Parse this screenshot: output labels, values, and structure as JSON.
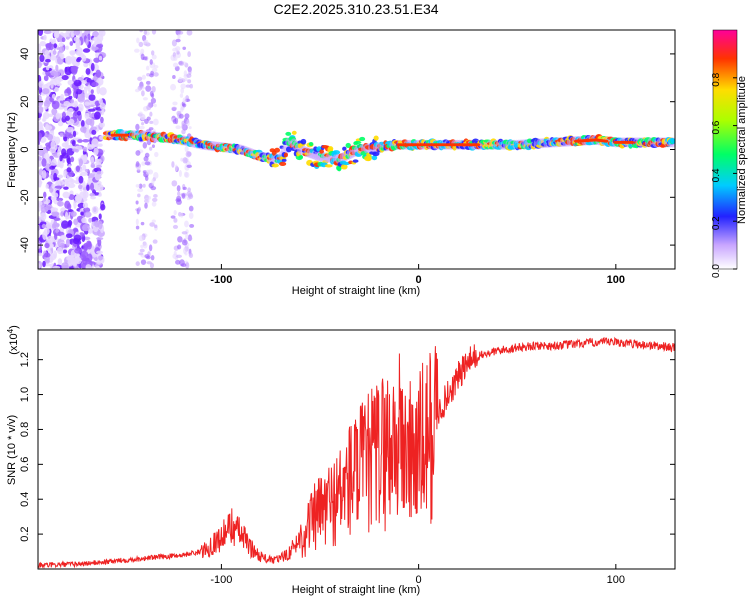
{
  "chart_data": [
    {
      "type": "heatmap",
      "title": "C2E2.2025.310.23.51.E34",
      "xlabel": "Height of straight line (km)",
      "ylabel": "Frequency (Hz)",
      "xlim": [
        -193,
        130
      ],
      "ylim": [
        -50,
        50
      ],
      "xticks": [
        -100,
        0,
        100
      ],
      "yticks": [
        -40,
        -20,
        0,
        20,
        40
      ],
      "colorbar": {
        "label": "Normalized spectral amplitude",
        "range": [
          0.0,
          1.0
        ],
        "ticks": [
          0.0,
          0.2,
          0.4,
          0.6,
          0.8
        ]
      },
      "ridge": {
        "x": [
          -158,
          -150,
          -140,
          -130,
          -120,
          -110,
          -100,
          -90,
          -80,
          -70,
          -65,
          -60,
          -50,
          -40,
          -30,
          -20,
          -10,
          0,
          10,
          20,
          30,
          50,
          70,
          90,
          100,
          110,
          130
        ],
        "freq": [
          6,
          6,
          6,
          5,
          4,
          2,
          1,
          0,
          -3,
          -4,
          4,
          0,
          -3,
          -4,
          0,
          1,
          2,
          2,
          2,
          2,
          2,
          2,
          3,
          4,
          3,
          3,
          3
        ]
      }
    },
    {
      "type": "line",
      "title": "",
      "xlabel": "Height of straight line (km)",
      "ylabel": "SNR (10 * v/v)",
      "yscale_label": "(x10",
      "yscale_exponent": "4",
      "xlim": [
        -193,
        130
      ],
      "ylim": [
        0,
        1.37
      ],
      "xticks": [
        -100,
        0,
        100
      ],
      "yticks": [
        0.2,
        0.4,
        0.6,
        0.8,
        1.0,
        1.2
      ],
      "series": [
        {
          "name": "SNR",
          "color": "#ee2222",
          "x": [
            -193,
            -170,
            -150,
            -140,
            -130,
            -120,
            -110,
            -100,
            -95,
            -90,
            -85,
            -80,
            -75,
            -70,
            -65,
            -60,
            -55,
            -50,
            -45,
            -40,
            -35,
            -30,
            -25,
            -20,
            -15,
            -10,
            -5,
            0,
            5,
            10,
            15,
            20,
            25,
            30,
            40,
            50,
            60,
            70,
            80,
            90,
            100,
            110,
            120,
            130
          ],
          "y": [
            0.02,
            0.03,
            0.05,
            0.06,
            0.07,
            0.08,
            0.1,
            0.18,
            0.25,
            0.2,
            0.12,
            0.07,
            0.05,
            0.06,
            0.1,
            0.18,
            0.28,
            0.35,
            0.4,
            0.45,
            0.55,
            0.6,
            0.65,
            0.72,
            0.75,
            0.8,
            0.7,
            0.72,
            0.8,
            0.9,
            1.0,
            1.1,
            1.18,
            1.22,
            1.25,
            1.27,
            1.28,
            1.28,
            1.29,
            1.3,
            1.3,
            1.29,
            1.28,
            1.27
          ]
        }
      ]
    }
  ],
  "colors": {
    "line": "#ee2222",
    "frame": "#000000"
  }
}
